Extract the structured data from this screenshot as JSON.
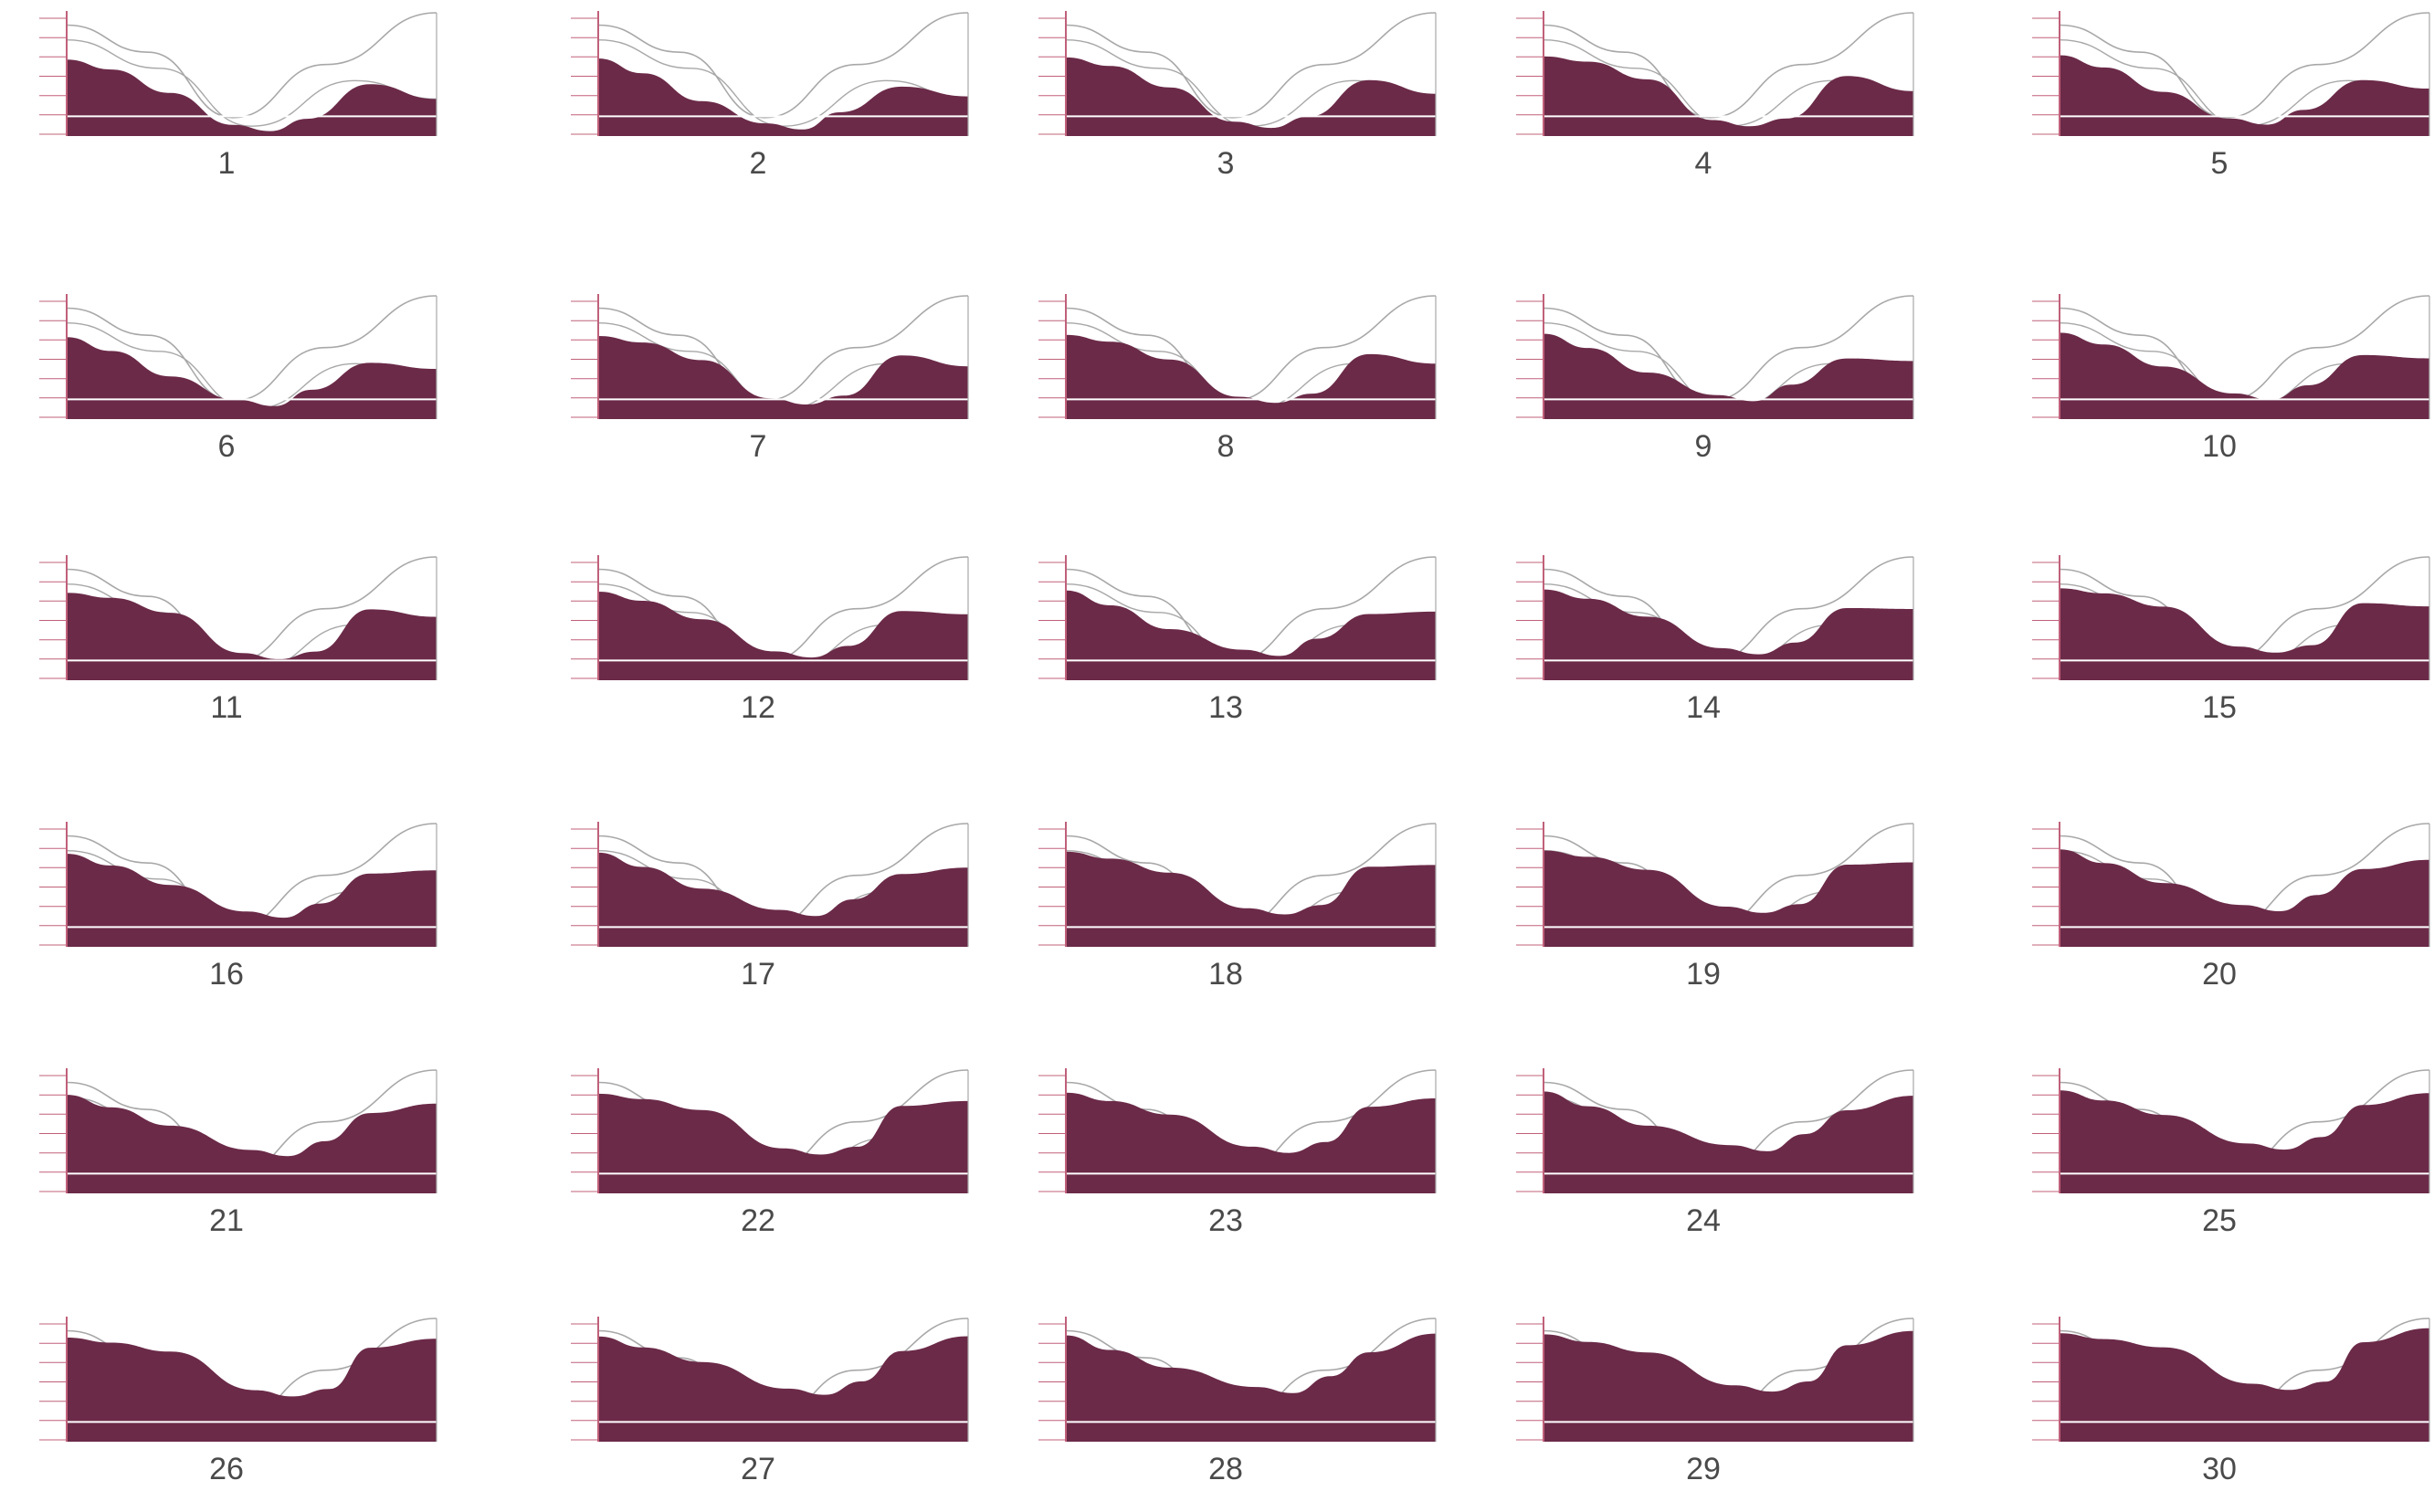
{
  "colors": {
    "fill": "#6b2a48",
    "axis": "#c0607a",
    "outline": "#a8a8a8",
    "baseline": "#ffffff",
    "label": "#4a4a4a"
  },
  "panels": [
    {
      "label": "1"
    },
    {
      "label": "2"
    },
    {
      "label": "3"
    },
    {
      "label": "4"
    },
    {
      "label": "5"
    },
    {
      "label": "6"
    },
    {
      "label": "7"
    },
    {
      "label": "8"
    },
    {
      "label": "9"
    },
    {
      "label": "10"
    },
    {
      "label": "11"
    },
    {
      "label": "12"
    },
    {
      "label": "13"
    },
    {
      "label": "14"
    },
    {
      "label": "15"
    },
    {
      "label": "16"
    },
    {
      "label": "17"
    },
    {
      "label": "18"
    },
    {
      "label": "19"
    },
    {
      "label": "20"
    },
    {
      "label": "21"
    },
    {
      "label": "22"
    },
    {
      "label": "23"
    },
    {
      "label": "24"
    },
    {
      "label": "25"
    },
    {
      "label": "26"
    },
    {
      "label": "27"
    },
    {
      "label": "28"
    },
    {
      "label": "29"
    },
    {
      "label": "30"
    }
  ]
}
